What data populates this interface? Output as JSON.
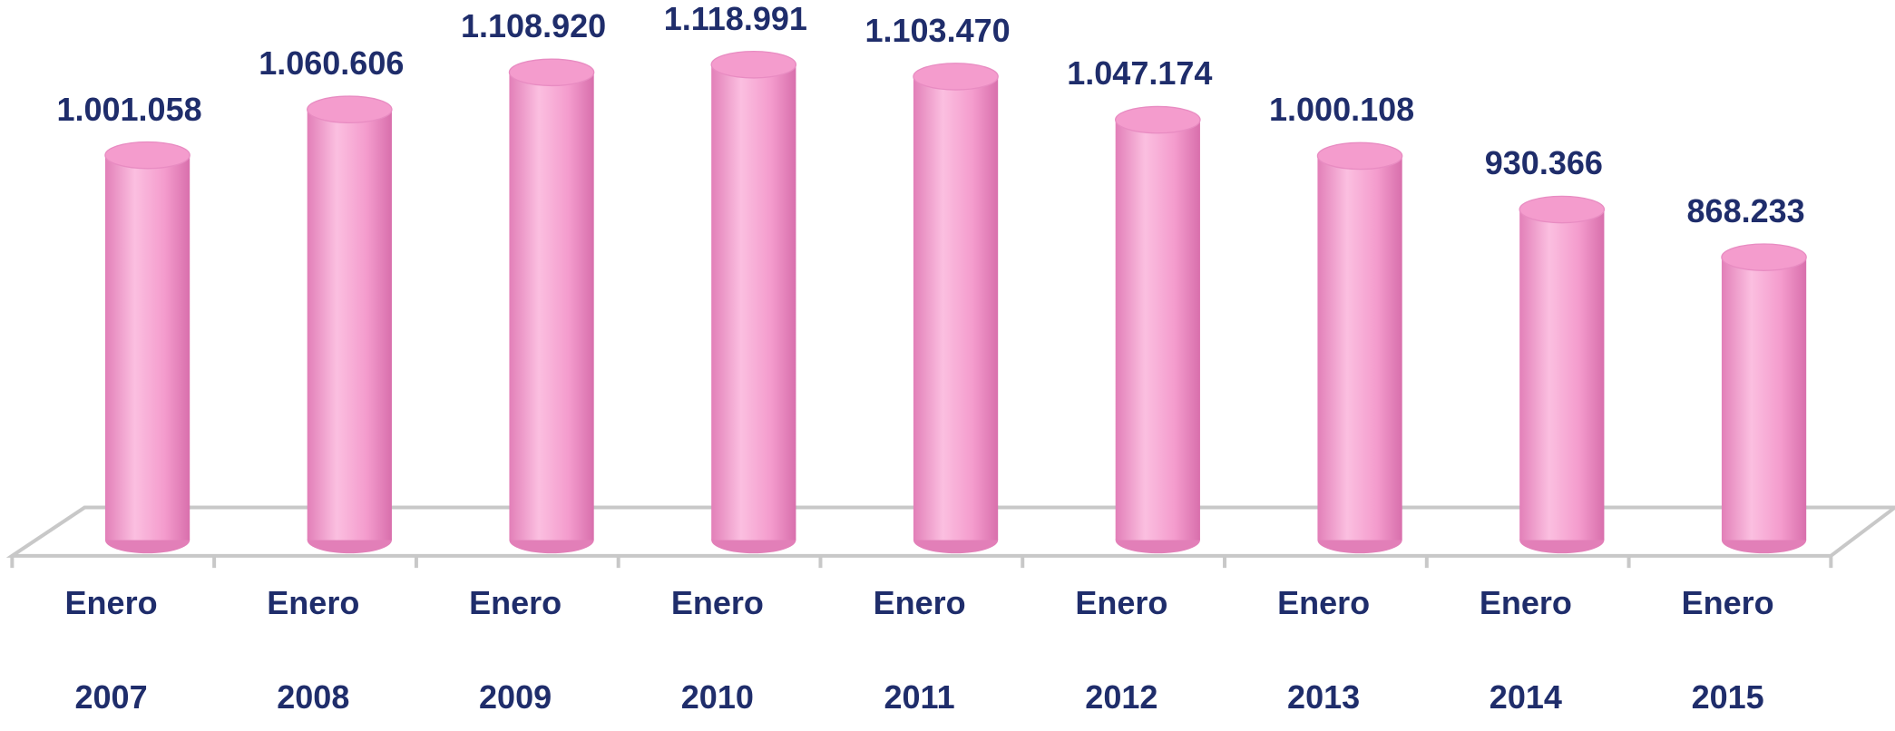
{
  "chart_data": {
    "type": "bar",
    "categories": [
      "Enero 2007",
      "Enero 2008",
      "Enero 2009",
      "Enero 2010",
      "Enero 2011",
      "Enero 2012",
      "Enero 2013",
      "Enero 2014",
      "Enero 2015"
    ],
    "values": [
      1001058,
      1060606,
      1108920,
      1118991,
      1103470,
      1047174,
      1000108,
      930366,
      868233
    ],
    "value_labels": [
      "1.001.058",
      "1.060.606",
      "1.108.920",
      "1.118.991",
      "1.103.470",
      "1.047.174",
      "1.000.108",
      "930.366",
      "868.233"
    ],
    "color": "#f49ccd",
    "ylim": [
      500000,
      1200000
    ]
  }
}
